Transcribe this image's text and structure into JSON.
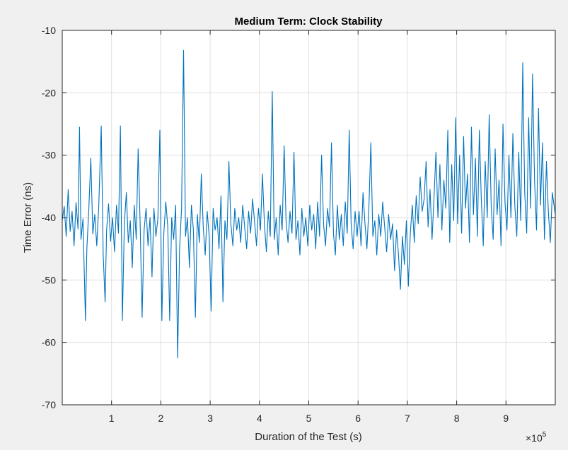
{
  "chart_data": {
    "type": "line",
    "title": "Medium Term: Clock Stability",
    "xlabel": "Duration of the Test (s)",
    "ylabel": "Time Error (ns)",
    "x_exponent_base": "×10",
    "x_exponent_power": "5",
    "xlim": [
      0,
      100
    ],
    "ylim": [
      -70,
      -10
    ],
    "grid": true,
    "line_color": "#0072bd",
    "x_ticks": [
      10,
      20,
      30,
      40,
      50,
      60,
      70,
      80,
      90
    ],
    "x_tick_labels": [
      "1",
      "2",
      "3",
      "4",
      "5",
      "6",
      "7",
      "8",
      "9"
    ],
    "y_ticks": [
      -10,
      -20,
      -30,
      -40,
      -50,
      -60,
      -70
    ],
    "y_tick_labels": [
      "-10",
      "-20",
      "-30",
      "-40",
      "-50",
      "-60",
      "-70"
    ],
    "series": [
      {
        "points": [
          [
            0.0,
            -40.5
          ],
          [
            0.4,
            -38.2
          ],
          [
            0.8,
            -43.0
          ],
          [
            1.2,
            -35.5
          ],
          [
            1.6,
            -42.2
          ],
          [
            2.0,
            -39.0
          ],
          [
            2.4,
            -44.5
          ],
          [
            2.8,
            -37.6
          ],
          [
            3.2,
            -41.8
          ],
          [
            3.5,
            -25.5
          ],
          [
            3.8,
            -43.5
          ],
          [
            4.2,
            -40.2
          ],
          [
            4.7,
            -56.5
          ],
          [
            5.0,
            -45.0
          ],
          [
            5.4,
            -38.5
          ],
          [
            5.8,
            -30.5
          ],
          [
            6.2,
            -42.6
          ],
          [
            6.6,
            -39.5
          ],
          [
            7.0,
            -44.5
          ],
          [
            7.4,
            -38.2
          ],
          [
            7.9,
            -25.3
          ],
          [
            8.3,
            -46.0
          ],
          [
            8.7,
            -53.5
          ],
          [
            9.0,
            -42.0
          ],
          [
            9.4,
            -37.8
          ],
          [
            9.8,
            -43.8
          ],
          [
            10.2,
            -40.0
          ],
          [
            10.6,
            -45.5
          ],
          [
            11.0,
            -38.0
          ],
          [
            11.4,
            -42.5
          ],
          [
            11.8,
            -25.3
          ],
          [
            12.2,
            -56.5
          ],
          [
            12.6,
            -41.0
          ],
          [
            13.0,
            -36.0
          ],
          [
            13.4,
            -44.0
          ],
          [
            13.8,
            -40.5
          ],
          [
            14.2,
            -48.0
          ],
          [
            14.6,
            -38.0
          ],
          [
            15.0,
            -43.5
          ],
          [
            15.4,
            -29.0
          ],
          [
            15.8,
            -40.8
          ],
          [
            16.2,
            -56.0
          ],
          [
            16.6,
            -42.0
          ],
          [
            17.0,
            -38.5
          ],
          [
            17.4,
            -44.5
          ],
          [
            17.8,
            -40.0
          ],
          [
            18.2,
            -49.5
          ],
          [
            18.6,
            -38.5
          ],
          [
            19.0,
            -43.0
          ],
          [
            19.4,
            -40.2
          ],
          [
            19.8,
            -26.0
          ],
          [
            20.2,
            -56.5
          ],
          [
            20.6,
            -42.5
          ],
          [
            21.0,
            -37.5
          ],
          [
            21.4,
            -41.5
          ],
          [
            21.8,
            -56.5
          ],
          [
            22.2,
            -40.0
          ],
          [
            22.6,
            -43.5
          ],
          [
            23.0,
            -38.0
          ],
          [
            23.4,
            -62.5
          ],
          [
            23.8,
            -45.0
          ],
          [
            24.2,
            -38.5
          ],
          [
            24.6,
            -13.2
          ],
          [
            25.0,
            -43.0
          ],
          [
            25.4,
            -40.0
          ],
          [
            25.8,
            -48.0
          ],
          [
            26.2,
            -38.0
          ],
          [
            26.6,
            -42.0
          ],
          [
            27.0,
            -56.0
          ],
          [
            27.4,
            -39.5
          ],
          [
            27.8,
            -44.0
          ],
          [
            28.2,
            -33.0
          ],
          [
            28.6,
            -41.5
          ],
          [
            29.0,
            -46.0
          ],
          [
            29.4,
            -39.0
          ],
          [
            29.8,
            -43.0
          ],
          [
            30.2,
            -55.0
          ],
          [
            30.6,
            -38.5
          ],
          [
            31.0,
            -42.0
          ],
          [
            31.4,
            -40.0
          ],
          [
            31.8,
            -45.0
          ],
          [
            32.2,
            -36.5
          ],
          [
            32.6,
            -53.5
          ],
          [
            33.0,
            -40.5
          ],
          [
            33.4,
            -43.5
          ],
          [
            33.8,
            -31.0
          ],
          [
            34.2,
            -41.0
          ],
          [
            34.6,
            -44.5
          ],
          [
            35.0,
            -38.5
          ],
          [
            35.4,
            -42.0
          ],
          [
            35.8,
            -40.0
          ],
          [
            36.2,
            -44.0
          ],
          [
            36.6,
            -38.0
          ],
          [
            37.0,
            -41.5
          ],
          [
            37.4,
            -45.0
          ],
          [
            37.8,
            -39.0
          ],
          [
            38.2,
            -42.5
          ],
          [
            38.6,
            -37.0
          ],
          [
            39.0,
            -40.5
          ],
          [
            39.4,
            -44.5
          ],
          [
            39.8,
            -38.5
          ],
          [
            40.2,
            -42.0
          ],
          [
            40.6,
            -33.0
          ],
          [
            41.0,
            -41.0
          ],
          [
            41.4,
            -45.5
          ],
          [
            41.8,
            -39.0
          ],
          [
            42.2,
            -43.0
          ],
          [
            42.6,
            -19.8
          ],
          [
            43.0,
            -43.5
          ],
          [
            43.4,
            -40.0
          ],
          [
            43.8,
            -46.0
          ],
          [
            44.2,
            -38.0
          ],
          [
            44.6,
            -42.0
          ],
          [
            45.0,
            -28.5
          ],
          [
            45.4,
            -40.5
          ],
          [
            45.8,
            -44.0
          ],
          [
            46.2,
            -39.0
          ],
          [
            46.6,
            -42.5
          ],
          [
            47.0,
            -29.5
          ],
          [
            47.4,
            -43.5
          ],
          [
            47.8,
            -40.5
          ],
          [
            48.2,
            -46.0
          ],
          [
            48.6,
            -38.5
          ],
          [
            49.0,
            -43.0
          ],
          [
            49.4,
            -40.0
          ],
          [
            49.8,
            -44.5
          ],
          [
            50.2,
            -38.0
          ],
          [
            50.6,
            -42.0
          ],
          [
            51.0,
            -39.5
          ],
          [
            51.4,
            -45.0
          ],
          [
            51.8,
            -37.5
          ],
          [
            52.2,
            -43.0
          ],
          [
            52.6,
            -30.0
          ],
          [
            53.0,
            -41.0
          ],
          [
            53.4,
            -44.5
          ],
          [
            53.8,
            -38.5
          ],
          [
            54.2,
            -41.5
          ],
          [
            54.6,
            -28.0
          ],
          [
            55.0,
            -42.5
          ],
          [
            55.4,
            -46.0
          ],
          [
            55.8,
            -38.0
          ],
          [
            56.2,
            -43.5
          ],
          [
            56.6,
            -39.5
          ],
          [
            57.0,
            -44.5
          ],
          [
            57.4,
            -37.5
          ],
          [
            57.8,
            -42.5
          ],
          [
            58.2,
            -26.0
          ],
          [
            58.6,
            -41.0
          ],
          [
            59.0,
            -45.0
          ],
          [
            59.4,
            -39.0
          ],
          [
            59.8,
            -43.0
          ],
          [
            60.2,
            -39.0
          ],
          [
            60.6,
            -44.5
          ],
          [
            61.0,
            -36.0
          ],
          [
            61.4,
            -41.0
          ],
          [
            61.8,
            -45.0
          ],
          [
            62.2,
            -38.5
          ],
          [
            62.6,
            -28.0
          ],
          [
            63.0,
            -43.0
          ],
          [
            63.4,
            -40.5
          ],
          [
            63.8,
            -46.0
          ],
          [
            64.2,
            -39.5
          ],
          [
            64.6,
            -43.0
          ],
          [
            65.0,
            -37.5
          ],
          [
            65.4,
            -41.5
          ],
          [
            65.8,
            -45.5
          ],
          [
            66.2,
            -39.5
          ],
          [
            66.6,
            -43.5
          ],
          [
            67.0,
            -41.0
          ],
          [
            67.4,
            -48.5
          ],
          [
            67.8,
            -42.0
          ],
          [
            68.2,
            -46.0
          ],
          [
            68.6,
            -51.5
          ],
          [
            69.0,
            -43.0
          ],
          [
            69.4,
            -47.5
          ],
          [
            69.8,
            -40.5
          ],
          [
            70.2,
            -51.0
          ],
          [
            70.6,
            -42.5
          ],
          [
            71.0,
            -38.0
          ],
          [
            71.4,
            -44.0
          ],
          [
            71.8,
            -36.5
          ],
          [
            72.2,
            -41.0
          ],
          [
            72.6,
            -33.5
          ],
          [
            73.0,
            -39.0
          ],
          [
            73.4,
            -37.0
          ],
          [
            73.8,
            -31.0
          ],
          [
            74.2,
            -41.5
          ],
          [
            74.6,
            -35.5
          ],
          [
            75.0,
            -43.5
          ],
          [
            75.4,
            -37.0
          ],
          [
            75.8,
            -29.5
          ],
          [
            76.2,
            -40.0
          ],
          [
            76.6,
            -31.5
          ],
          [
            77.0,
            -42.0
          ],
          [
            77.4,
            -34.0
          ],
          [
            77.8,
            -38.5
          ],
          [
            78.2,
            -26.0
          ],
          [
            78.6,
            -44.0
          ],
          [
            79.0,
            -31.5
          ],
          [
            79.4,
            -40.5
          ],
          [
            79.8,
            -24.0
          ],
          [
            80.2,
            -41.0
          ],
          [
            80.6,
            -30.0
          ],
          [
            81.0,
            -42.5
          ],
          [
            81.4,
            -27.0
          ],
          [
            81.8,
            -38.5
          ],
          [
            82.2,
            -33.0
          ],
          [
            82.6,
            -44.0
          ],
          [
            83.0,
            -25.5
          ],
          [
            83.4,
            -39.5
          ],
          [
            83.8,
            -30.5
          ],
          [
            84.2,
            -43.0
          ],
          [
            84.6,
            -26.0
          ],
          [
            85.0,
            -37.0
          ],
          [
            85.4,
            -44.5
          ],
          [
            85.8,
            -31.0
          ],
          [
            86.2,
            -40.0
          ],
          [
            86.6,
            -23.5
          ],
          [
            87.0,
            -38.0
          ],
          [
            87.4,
            -43.5
          ],
          [
            87.8,
            -29.0
          ],
          [
            88.2,
            -39.5
          ],
          [
            88.6,
            -34.0
          ],
          [
            89.0,
            -44.5
          ],
          [
            89.4,
            -25.0
          ],
          [
            89.8,
            -37.5
          ],
          [
            90.2,
            -42.0
          ],
          [
            90.6,
            -30.0
          ],
          [
            91.0,
            -40.0
          ],
          [
            91.4,
            -26.5
          ],
          [
            91.8,
            -38.0
          ],
          [
            92.2,
            -43.0
          ],
          [
            92.6,
            -29.5
          ],
          [
            93.0,
            -40.5
          ],
          [
            93.4,
            -15.2
          ],
          [
            93.8,
            -36.0
          ],
          [
            94.2,
            -42.5
          ],
          [
            94.6,
            -24.0
          ],
          [
            95.0,
            -38.5
          ],
          [
            95.4,
            -17.0
          ],
          [
            95.8,
            -34.0
          ],
          [
            96.2,
            -42.0
          ],
          [
            96.6,
            -22.5
          ],
          [
            97.0,
            -38.0
          ],
          [
            97.4,
            -28.0
          ],
          [
            97.8,
            -43.5
          ],
          [
            98.2,
            -31.0
          ],
          [
            98.6,
            -39.0
          ],
          [
            99.0,
            -44.0
          ],
          [
            99.4,
            -36.0
          ],
          [
            100.0,
            -39.5
          ]
        ]
      }
    ]
  }
}
